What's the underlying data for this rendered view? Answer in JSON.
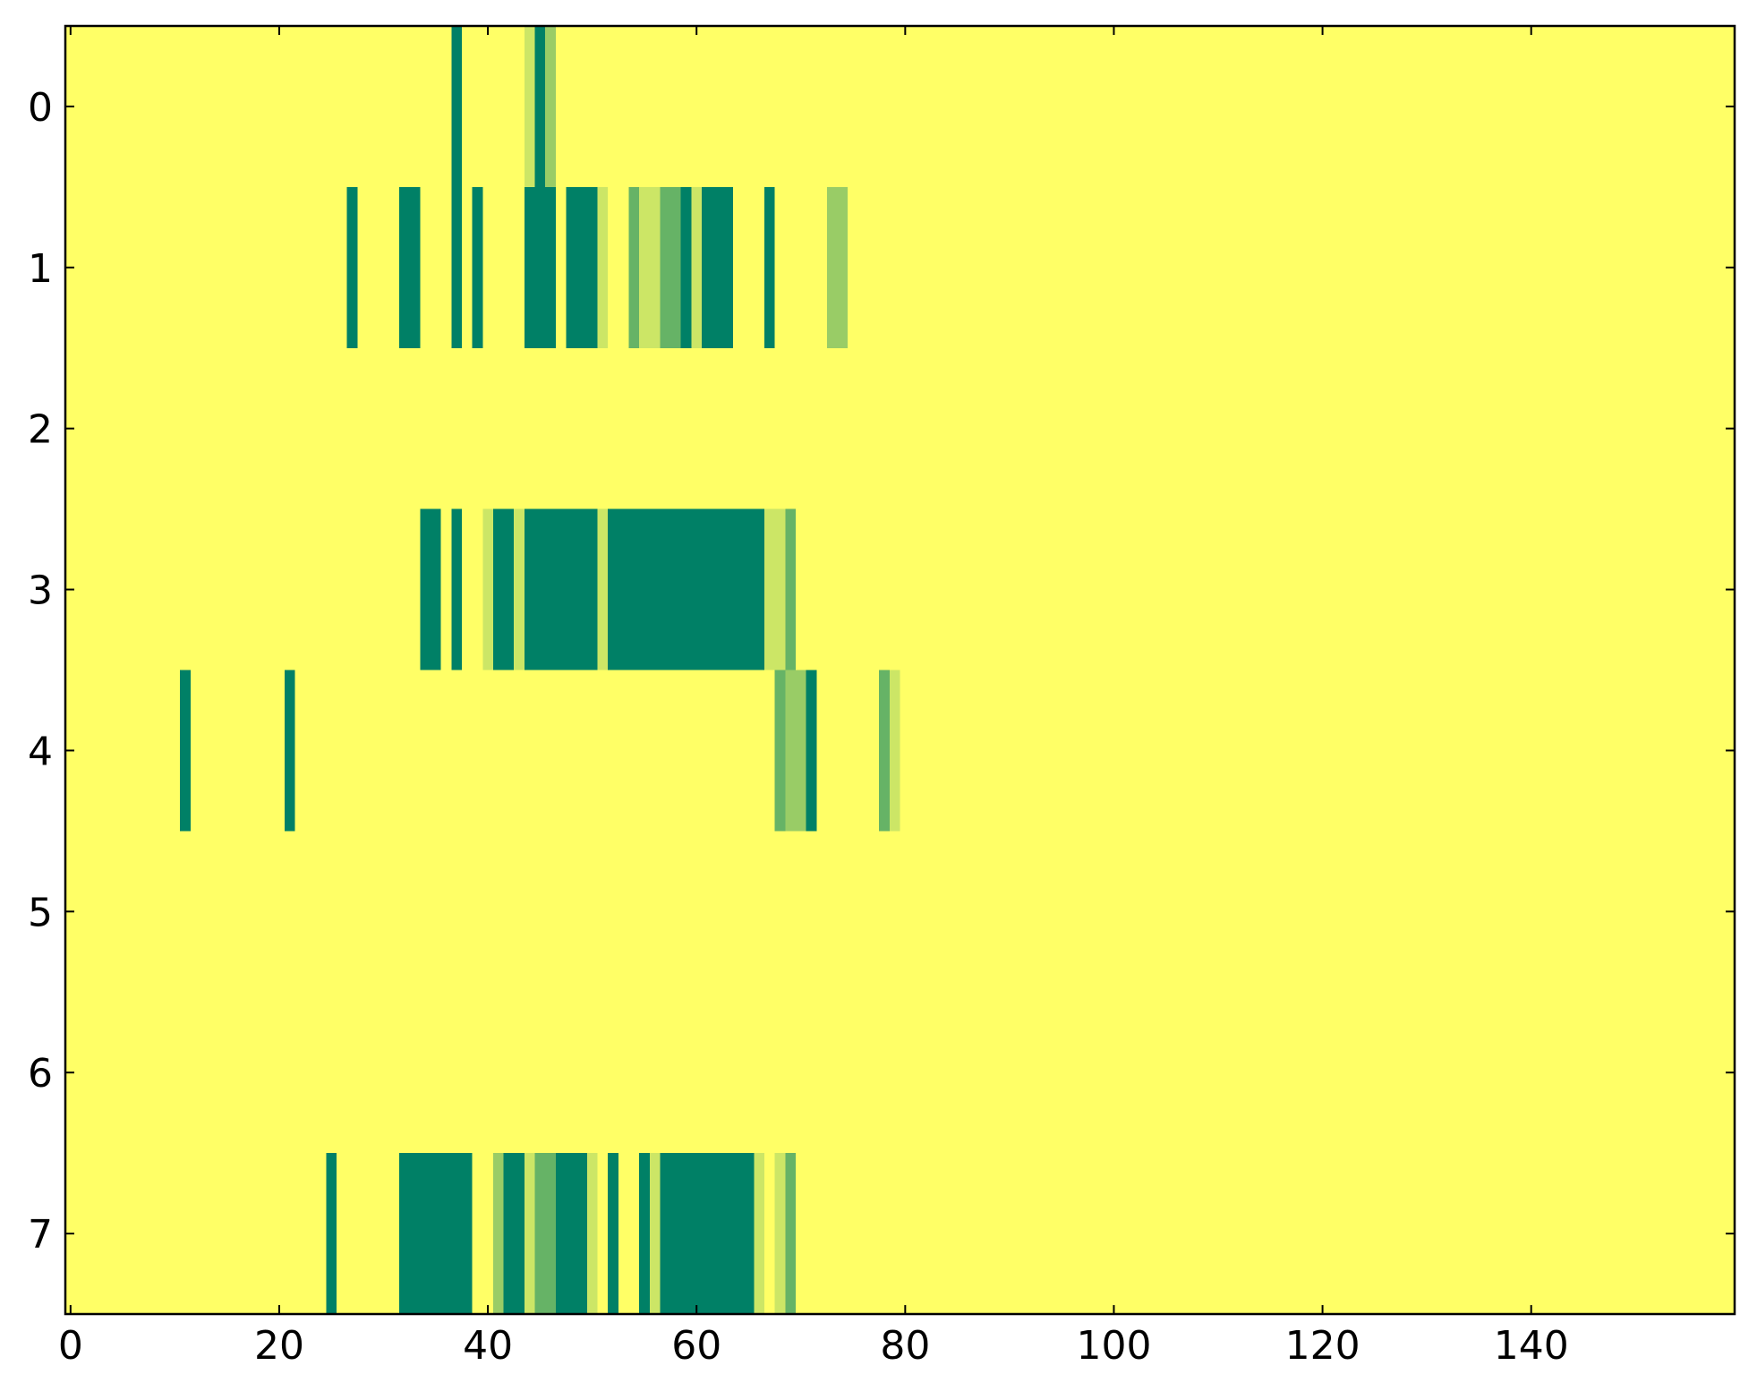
{
  "chart_data": {
    "type": "heatmap",
    "colormap": "summer_r",
    "vlim": [
      0,
      5
    ],
    "xlim": [
      -0.5,
      159.5
    ],
    "ylim": [
      7.5,
      -0.5
    ],
    "xticks": [
      0,
      20,
      40,
      60,
      80,
      100,
      120,
      140
    ],
    "yticks": [
      0,
      1,
      2,
      3,
      4,
      5,
      6,
      7
    ],
    "rows": [
      [
        0,
        0,
        0,
        0,
        0,
        0,
        0,
        0,
        0,
        0,
        0,
        0,
        0,
        0,
        0,
        0,
        0,
        0,
        0,
        0,
        0,
        0,
        0,
        0,
        0,
        0,
        0,
        0,
        0,
        0,
        0,
        0,
        0,
        0,
        0,
        0,
        0,
        5,
        0,
        0,
        0,
        0,
        0,
        0,
        1,
        5,
        2,
        0,
        0,
        0,
        0,
        0,
        0,
        0,
        0,
        0,
        0,
        0,
        0,
        0,
        0,
        0,
        0,
        0,
        0,
        0,
        0,
        0,
        0,
        0,
        0,
        0,
        0,
        0,
        0,
        0,
        0,
        0,
        0,
        0,
        0,
        0,
        0,
        0,
        0,
        0,
        0,
        0,
        0,
        0,
        0,
        0,
        0,
        0,
        0,
        0,
        0,
        0,
        0,
        0,
        0,
        0,
        0,
        0,
        0,
        0,
        0,
        0,
        0,
        0,
        0,
        0,
        0,
        0,
        0,
        0,
        0,
        0,
        0,
        0,
        0,
        0,
        0,
        0,
        0,
        0,
        0,
        0,
        0,
        0,
        0,
        0,
        0,
        0,
        0,
        0,
        0,
        0,
        0,
        0,
        0,
        0,
        0,
        0,
        0,
        0,
        0,
        0,
        0,
        0,
        0,
        0,
        0,
        0,
        0,
        0,
        0,
        0,
        0,
        0
      ],
      [
        0,
        0,
        0,
        0,
        0,
        0,
        0,
        0,
        0,
        0,
        0,
        0,
        0,
        0,
        0,
        0,
        0,
        0,
        0,
        0,
        0,
        0,
        0,
        0,
        0,
        0,
        0,
        5,
        0,
        0,
        0,
        0,
        5,
        5,
        0,
        0,
        0,
        5,
        0,
        5,
        0,
        0,
        0,
        0,
        5,
        5,
        5,
        0,
        5,
        5,
        5,
        1,
        0,
        0,
        3,
        1,
        1,
        3,
        3,
        5,
        1,
        5,
        5,
        5,
        0,
        0,
        0,
        5,
        0,
        0,
        0,
        0,
        0,
        2,
        2,
        0,
        0,
        0,
        0,
        0,
        0,
        0,
        0,
        0,
        0,
        0,
        0,
        0,
        0,
        0,
        0,
        0,
        0,
        0,
        0,
        0,
        0,
        0,
        0,
        0,
        0,
        0,
        0,
        0,
        0,
        0,
        0,
        0,
        0,
        0,
        0,
        0,
        0,
        0,
        0,
        0,
        0,
        0,
        0,
        0,
        0,
        0,
        0,
        0,
        0,
        0,
        0,
        0,
        0,
        0,
        0,
        0,
        0,
        0,
        0,
        0,
        0,
        0,
        0,
        0,
        0,
        0,
        0,
        0,
        0,
        0,
        0,
        0,
        0,
        0,
        0,
        0,
        0,
        0,
        0,
        0,
        0,
        0,
        0,
        0
      ],
      [
        0,
        0,
        0,
        0,
        0,
        0,
        0,
        0,
        0,
        0,
        0,
        0,
        0,
        0,
        0,
        0,
        0,
        0,
        0,
        0,
        0,
        0,
        0,
        0,
        0,
        0,
        0,
        0,
        0,
        0,
        0,
        0,
        0,
        0,
        0,
        0,
        0,
        0,
        0,
        0,
        0,
        0,
        0,
        0,
        0,
        0,
        0,
        0,
        0,
        0,
        0,
        0,
        0,
        0,
        0,
        0,
        0,
        0,
        0,
        0,
        0,
        0,
        0,
        0,
        0,
        0,
        0,
        0,
        0,
        0,
        0,
        0,
        0,
        0,
        0,
        0,
        0,
        0,
        0,
        0,
        0,
        0,
        0,
        0,
        0,
        0,
        0,
        0,
        0,
        0,
        0,
        0,
        0,
        0,
        0,
        0,
        0,
        0,
        0,
        0,
        0,
        0,
        0,
        0,
        0,
        0,
        0,
        0,
        0,
        0,
        0,
        0,
        0,
        0,
        0,
        0,
        0,
        0,
        0,
        0,
        0,
        0,
        0,
        0,
        0,
        0,
        0,
        0,
        0,
        0,
        0,
        0,
        0,
        0,
        0,
        0,
        0,
        0,
        0,
        0,
        0,
        0,
        0,
        0,
        0,
        0,
        0,
        0,
        0,
        0,
        0,
        0,
        0,
        0,
        0,
        0,
        0,
        0,
        0,
        0
      ],
      [
        0,
        0,
        0,
        0,
        0,
        0,
        0,
        0,
        0,
        0,
        0,
        0,
        0,
        0,
        0,
        0,
        0,
        0,
        0,
        0,
        0,
        0,
        0,
        0,
        0,
        0,
        0,
        0,
        0,
        0,
        0,
        0,
        0,
        0,
        5,
        5,
        0,
        5,
        0,
        0,
        1,
        5,
        5,
        1,
        5,
        5,
        5,
        5,
        5,
        5,
        5,
        1,
        5,
        5,
        5,
        5,
        5,
        5,
        5,
        5,
        5,
        5,
        5,
        5,
        5,
        5,
        5,
        1,
        1,
        3,
        0,
        0,
        0,
        0,
        0,
        0,
        0,
        0,
        0,
        0,
        0,
        0,
        0,
        0,
        0,
        0,
        0,
        0,
        0,
        0,
        0,
        0,
        0,
        0,
        0,
        0,
        0,
        0,
        0,
        0,
        0,
        0,
        0,
        0,
        0,
        0,
        0,
        0,
        0,
        0,
        0,
        0,
        0,
        0,
        0,
        0,
        0,
        0,
        0,
        0,
        0,
        0,
        0,
        0,
        0,
        0,
        0,
        0,
        0,
        0,
        0,
        0,
        0,
        0,
        0,
        0,
        0,
        0,
        0,
        0,
        0,
        0,
        0,
        0,
        0,
        0,
        0,
        0,
        0,
        0,
        0,
        0,
        0,
        0,
        0,
        0,
        0,
        0,
        0,
        0
      ],
      [
        0,
        0,
        0,
        0,
        0,
        0,
        0,
        0,
        0,
        0,
        0,
        5,
        0,
        0,
        0,
        0,
        0,
        0,
        0,
        0,
        0,
        5,
        0,
        0,
        0,
        0,
        0,
        0,
        0,
        0,
        0,
        0,
        0,
        0,
        0,
        0,
        0,
        0,
        0,
        0,
        0,
        0,
        0,
        0,
        0,
        0,
        0,
        0,
        0,
        0,
        0,
        0,
        0,
        0,
        0,
        0,
        0,
        0,
        0,
        0,
        0,
        0,
        0,
        0,
        0,
        0,
        0,
        0,
        3,
        2,
        2,
        5,
        0,
        0,
        0,
        0,
        0,
        0,
        3,
        1,
        0,
        0,
        0,
        0,
        0,
        0,
        0,
        0,
        0,
        0,
        0,
        0,
        0,
        0,
        0,
        0,
        0,
        0,
        0,
        0,
        0,
        0,
        0,
        0,
        0,
        0,
        0,
        0,
        0,
        0,
        0,
        0,
        0,
        0,
        0,
        0,
        0,
        0,
        0,
        0,
        0,
        0,
        0,
        0,
        0,
        0,
        0,
        0,
        0,
        0,
        0,
        0,
        0,
        0,
        0,
        0,
        0,
        0,
        0,
        0,
        0,
        0,
        0,
        0,
        0,
        0,
        0,
        0,
        0,
        0,
        0,
        0,
        0,
        0,
        0,
        0,
        0,
        0,
        0,
        0
      ],
      [
        0,
        0,
        0,
        0,
        0,
        0,
        0,
        0,
        0,
        0,
        0,
        0,
        0,
        0,
        0,
        0,
        0,
        0,
        0,
        0,
        0,
        0,
        0,
        0,
        0,
        0,
        0,
        0,
        0,
        0,
        0,
        0,
        0,
        0,
        0,
        0,
        0,
        0,
        0,
        0,
        0,
        0,
        0,
        0,
        0,
        0,
        0,
        0,
        0,
        0,
        0,
        0,
        0,
        0,
        0,
        0,
        0,
        0,
        0,
        0,
        0,
        0,
        0,
        0,
        0,
        0,
        0,
        0,
        0,
        0,
        0,
        0,
        0,
        0,
        0,
        0,
        0,
        0,
        0,
        0,
        0,
        0,
        0,
        0,
        0,
        0,
        0,
        0,
        0,
        0,
        0,
        0,
        0,
        0,
        0,
        0,
        0,
        0,
        0,
        0,
        0,
        0,
        0,
        0,
        0,
        0,
        0,
        0,
        0,
        0,
        0,
        0,
        0,
        0,
        0,
        0,
        0,
        0,
        0,
        0,
        0,
        0,
        0,
        0,
        0,
        0,
        0,
        0,
        0,
        0,
        0,
        0,
        0,
        0,
        0,
        0,
        0,
        0,
        0,
        0,
        0,
        0,
        0,
        0,
        0,
        0,
        0,
        0,
        0,
        0,
        0,
        0,
        0,
        0,
        0,
        0,
        0,
        0,
        0,
        0
      ],
      [
        0,
        0,
        0,
        0,
        0,
        0,
        0,
        0,
        0,
        0,
        0,
        0,
        0,
        0,
        0,
        0,
        0,
        0,
        0,
        0,
        0,
        0,
        0,
        0,
        0,
        0,
        0,
        0,
        0,
        0,
        0,
        0,
        0,
        0,
        0,
        0,
        0,
        0,
        0,
        0,
        0,
        0,
        0,
        0,
        0,
        0,
        0,
        0,
        0,
        0,
        0,
        0,
        0,
        0,
        0,
        0,
        0,
        0,
        0,
        0,
        0,
        0,
        0,
        0,
        0,
        0,
        0,
        0,
        0,
        0,
        0,
        0,
        0,
        0,
        0,
        0,
        0,
        0,
        0,
        0,
        0,
        0,
        0,
        0,
        0,
        0,
        0,
        0,
        0,
        0,
        0,
        0,
        0,
        0,
        0,
        0,
        0,
        0,
        0,
        0,
        0,
        0,
        0,
        0,
        0,
        0,
        0,
        0,
        0,
        0,
        0,
        0,
        0,
        0,
        0,
        0,
        0,
        0,
        0,
        0,
        0,
        0,
        0,
        0,
        0,
        0,
        0,
        0,
        0,
        0,
        0,
        0,
        0,
        0,
        0,
        0,
        0,
        0,
        0,
        0,
        0,
        0,
        0,
        0,
        0,
        0,
        0,
        0,
        0,
        0,
        0,
        0,
        0,
        0,
        0,
        0,
        0,
        0,
        0,
        0
      ],
      [
        0,
        0,
        0,
        0,
        0,
        0,
        0,
        0,
        0,
        0,
        0,
        0,
        0,
        0,
        0,
        0,
        0,
        0,
        0,
        0,
        0,
        0,
        0,
        0,
        0,
        5,
        0,
        0,
        0,
        0,
        0,
        0,
        5,
        5,
        5,
        5,
        5,
        5,
        5,
        0,
        0,
        2,
        5,
        5,
        1,
        3,
        3,
        5,
        5,
        5,
        1,
        0,
        5,
        0,
        0,
        5,
        1,
        5,
        5,
        5,
        5,
        5,
        5,
        5,
        5,
        5,
        1,
        0,
        1,
        3,
        0,
        0,
        0,
        0,
        0,
        0,
        0,
        0,
        0,
        0,
        0,
        0,
        0,
        0,
        0,
        0,
        0,
        0,
        0,
        0,
        0,
        0,
        0,
        0,
        0,
        0,
        0,
        0,
        0,
        0,
        0,
        0,
        0,
        0,
        0,
        0,
        0,
        0,
        0,
        0,
        0,
        0,
        0,
        0,
        0,
        0,
        0,
        0,
        0,
        0,
        0,
        0,
        0,
        0,
        0,
        0,
        0,
        0,
        0,
        0,
        0,
        0,
        0,
        0,
        0,
        0,
        0,
        0,
        0,
        0,
        0,
        0,
        0,
        0,
        0,
        0,
        0,
        0,
        0,
        0,
        0,
        0,
        0,
        0,
        0,
        0,
        0,
        0,
        0,
        0
      ]
    ]
  }
}
